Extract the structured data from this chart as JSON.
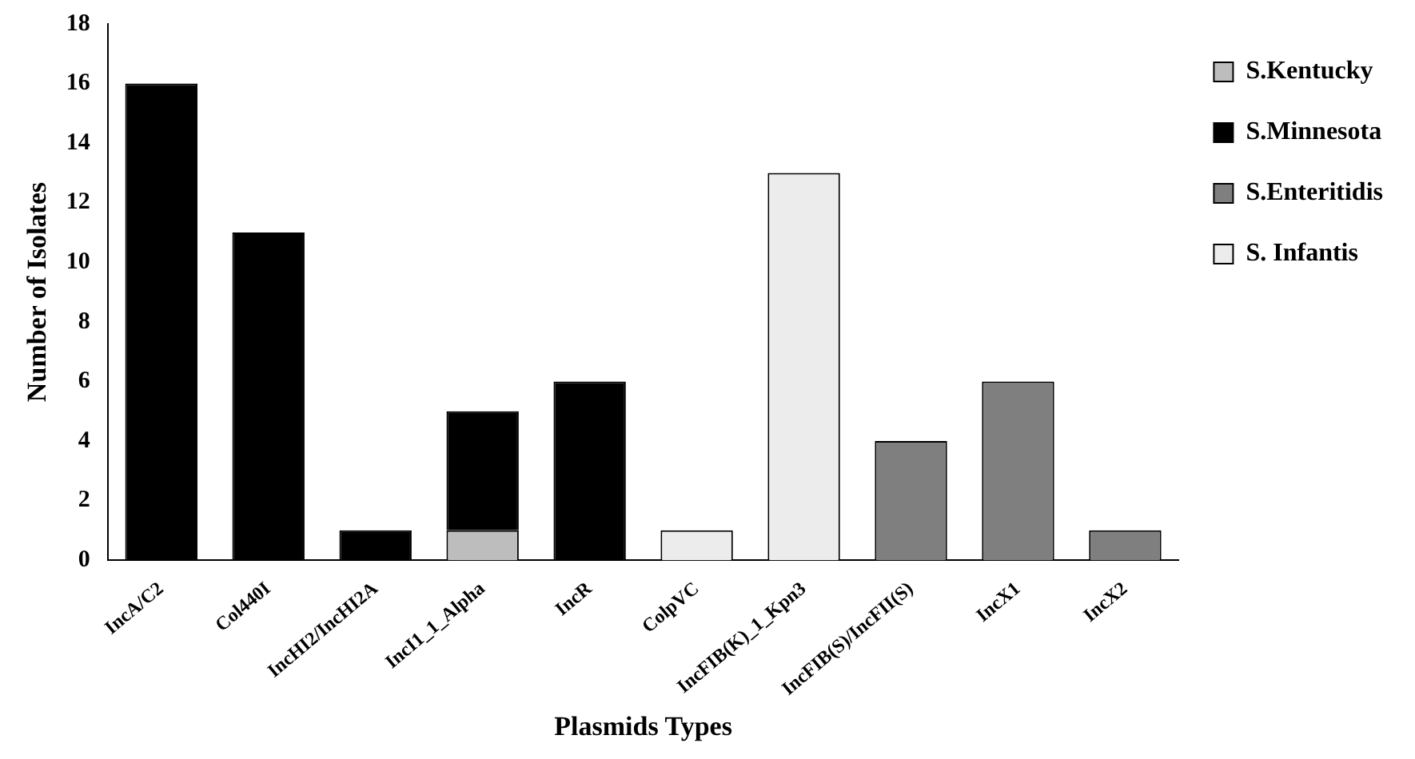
{
  "chart_data": {
    "type": "bar",
    "stacked": true,
    "xlabel": "Plasmids Types",
    "ylabel": "Number of Isolates",
    "categories": [
      "IncA/C2",
      "Col440I",
      "IncHI2/IncHI2A",
      "IncI1_1_Alpha",
      "IncR",
      "ColpVC",
      "IncFIB(K)_1_Kpn3",
      "IncFIB(S)/IncFII(S)",
      "IncX1",
      "IncX2"
    ],
    "series": [
      {
        "name": "S.Kentucky",
        "color": "#bdbdbd",
        "values": [
          null,
          null,
          null,
          1,
          null,
          null,
          null,
          null,
          null,
          null
        ]
      },
      {
        "name": "S.Minnesota",
        "color": "#000000",
        "values": [
          16,
          11,
          1,
          4,
          6,
          null,
          null,
          null,
          null,
          null
        ]
      },
      {
        "name": "S.Enteritidis",
        "color": "#7f7f7f",
        "values": [
          null,
          null,
          null,
          null,
          null,
          null,
          null,
          4,
          6,
          1
        ]
      },
      {
        "name": "S. Infantis",
        "color": "#ececec",
        "values": [
          null,
          null,
          null,
          null,
          null,
          1,
          13,
          null,
          null,
          null
        ]
      }
    ],
    "ylim": [
      0,
      18
    ],
    "yticks": [
      0,
      2,
      4,
      6,
      8,
      10,
      12,
      14,
      16,
      18
    ],
    "grid": false,
    "legend": "right"
  }
}
